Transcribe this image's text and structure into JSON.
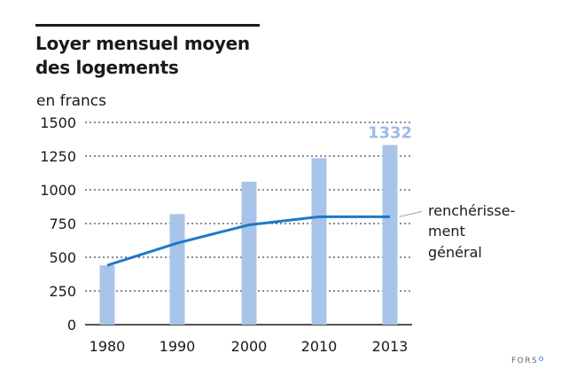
{
  "title": {
    "line1": "Loyer mensuel moyen",
    "line2": "des logements"
  },
  "unit_label": "en francs",
  "peak_label": "1332",
  "annotation": {
    "line1": "renchérisse-",
    "line2": "ment",
    "line3": "général"
  },
  "footer": "FORS",
  "colors": {
    "bars": "#a9c4e9",
    "line": "#1f78c8",
    "peak_label": "#9dbce6",
    "grid": "#1a1a1a"
  },
  "chart_data": {
    "type": "bar",
    "categories": [
      "1980",
      "1990",
      "2000",
      "2010",
      "2013"
    ],
    "series": [
      {
        "type": "bar",
        "values": [
          440,
          820,
          1060,
          1235,
          1332
        ]
      },
      {
        "type": "line",
        "values": [
          440,
          605,
          740,
          800,
          800
        ]
      }
    ],
    "ylim": [
      0,
      1500
    ],
    "yticks": [
      0,
      250,
      500,
      750,
      1000,
      1250,
      1500
    ],
    "grid": "horizontal dotted",
    "legend": "none"
  }
}
